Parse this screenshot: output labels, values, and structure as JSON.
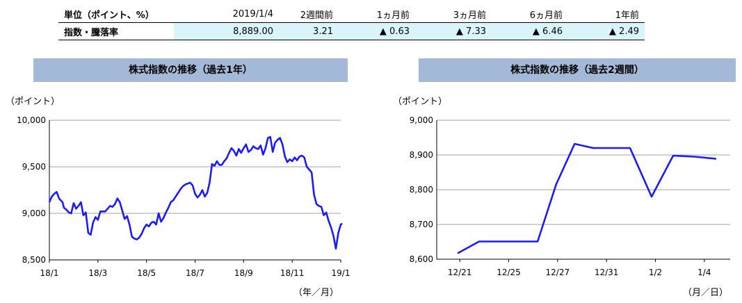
{
  "summary_table": {
    "headers": [
      "単位（ポイント、%）",
      "2019/1/4",
      "2週間前",
      "1ヵ月前",
      "3ヵ月前",
      "6ヵ月前",
      "1年前"
    ],
    "row_label": "指数・騰落率",
    "values": [
      "8,889.00",
      "3.21",
      "▲ 0.63",
      "▲ 7.33",
      "▲ 6.46",
      "▲ 2.49"
    ]
  },
  "chart_data": [
    {
      "type": "line",
      "title": "株式指数の推移（過去1年）",
      "ylabel": "（ポイント）",
      "xlabel": "（年／月）",
      "ylim": [
        8500,
        10000
      ],
      "yticks": [
        8500,
        9000,
        9500,
        10000
      ],
      "ytick_labels": [
        "8,500",
        "9,000",
        "9,500",
        "10,000"
      ],
      "xticks": [
        "18/1",
        "18/3",
        "18/5",
        "18/7",
        "18/9",
        "18/11",
        "19/1"
      ],
      "grid": true,
      "color": "#1a1aff",
      "series": [
        {
          "x": [
            0.0,
            0.05,
            0.1,
            0.15,
            0.2,
            0.27,
            0.3,
            0.35,
            0.4,
            0.45,
            0.5,
            0.55,
            0.6,
            0.65,
            0.7,
            0.75,
            0.8,
            0.85,
            0.9,
            0.95,
            1.0,
            1.05,
            1.1,
            1.15,
            1.2,
            1.25,
            1.3,
            1.35,
            1.4,
            1.45,
            1.5,
            1.55,
            1.6,
            1.65,
            1.7,
            1.75,
            1.8,
            1.85,
            1.9,
            1.95,
            2.0,
            2.05,
            2.1,
            2.15,
            2.2,
            2.25,
            2.3,
            2.35,
            2.4,
            2.45,
            2.5,
            2.55,
            2.6,
            2.65,
            2.7,
            2.75,
            2.8,
            2.85,
            2.9,
            2.95,
            3.0,
            3.05,
            3.1,
            3.15,
            3.2,
            3.25,
            3.3,
            3.35,
            3.4,
            3.45,
            3.5,
            3.55,
            3.6,
            3.65,
            3.7,
            3.75,
            3.8,
            3.85,
            3.9,
            3.95,
            4.0,
            4.05,
            4.1,
            4.15,
            4.2,
            4.25,
            4.3,
            4.35,
            4.4,
            4.45,
            4.5,
            4.55,
            4.6,
            4.65,
            4.7,
            4.75,
            4.8,
            4.85,
            4.9,
            4.95,
            5.0,
            5.05,
            5.1,
            5.15,
            5.2,
            5.25,
            5.3,
            5.35,
            5.4,
            5.45,
            5.5,
            5.55,
            5.6,
            5.65,
            5.7,
            5.75,
            5.8,
            5.85,
            5.9,
            5.95,
            6.0,
            6.03
          ],
          "y": [
            9120,
            9180,
            9210,
            9230,
            9160,
            9120,
            9060,
            9040,
            9010,
            9000,
            9110,
            9050,
            9080,
            9120,
            8980,
            9010,
            8790,
            8770,
            8900,
            8960,
            8930,
            9020,
            9020,
            9020,
            9050,
            9080,
            9070,
            9100,
            9160,
            9120,
            9030,
            8940,
            8970,
            8880,
            8750,
            8730,
            8720,
            8740,
            8780,
            8840,
            8880,
            8860,
            8900,
            8910,
            8880,
            9000,
            8910,
            8950,
            9010,
            9060,
            9120,
            9140,
            9180,
            9220,
            9260,
            9290,
            9310,
            9320,
            9330,
            9300,
            9210,
            9170,
            9200,
            9250,
            9180,
            9220,
            9330,
            9530,
            9510,
            9560,
            9520,
            9520,
            9560,
            9590,
            9650,
            9700,
            9670,
            9620,
            9690,
            9650,
            9700,
            9740,
            9660,
            9680,
            9720,
            9700,
            9690,
            9730,
            9630,
            9700,
            9810,
            9820,
            9660,
            9760,
            9790,
            9810,
            9740,
            9610,
            9550,
            9580,
            9560,
            9600,
            9570,
            9610,
            9620,
            9600,
            9500,
            9470,
            9440,
            9200,
            9100,
            9080,
            9070,
            8980,
            9010,
            8920,
            8850,
            8760,
            8620,
            8790,
            8880,
            8890
          ]
        }
      ]
    },
    {
      "type": "line",
      "title": "株式指数の推移（過去2週間）",
      "ylabel": "（ポイント）",
      "xlabel": "（月／日）",
      "ylim": [
        8600,
        9000
      ],
      "yticks": [
        8600,
        8700,
        8800,
        8900,
        9000
      ],
      "ytick_labels": [
        "8,600",
        "8,700",
        "8,800",
        "8,900",
        "9,000"
      ],
      "categories": [
        "12/21",
        "12/25",
        "12/27",
        "12/31",
        "1/2",
        "1/4"
      ],
      "grid": true,
      "color": "#1a1aff",
      "series": [
        {
          "x": [
            0,
            0.7,
            1.4,
            2.0,
            2.6,
            3.2,
            3.8,
            4.4,
            5.0,
            5.6,
            6.3,
            7.0,
            7.7,
            8.4
          ],
          "y": [
            8617,
            8651,
            8651,
            8651,
            8651,
            8815,
            8932,
            8920,
            8920,
            8920,
            8780,
            8898,
            8895,
            8889
          ]
        }
      ]
    }
  ]
}
